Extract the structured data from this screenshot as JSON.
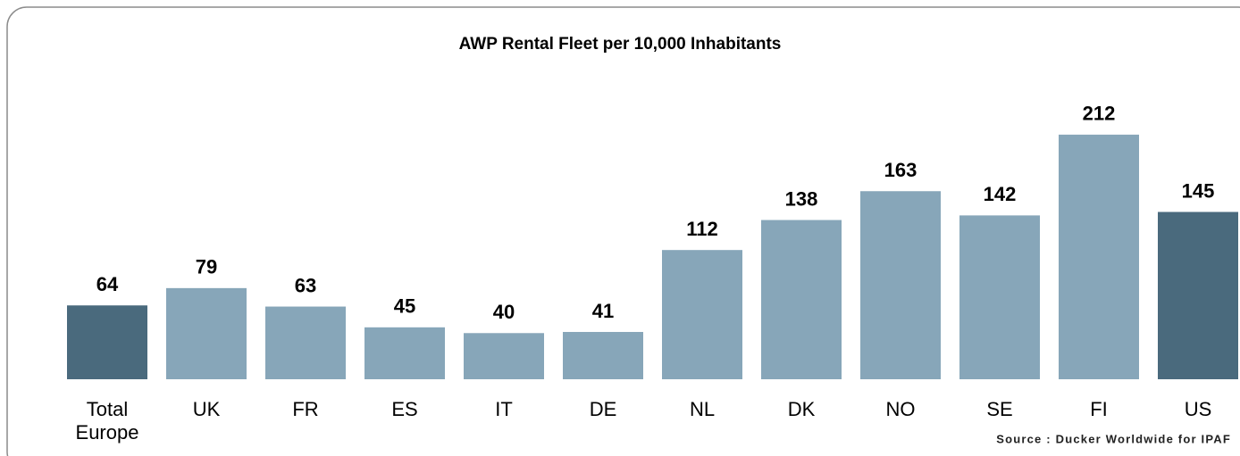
{
  "chart_data": {
    "type": "bar",
    "title": "AWP Rental Fleet per 10,000 Inhabitants",
    "categories": [
      "Total Europe",
      "UK",
      "FR",
      "ES",
      "IT",
      "DE",
      "NL",
      "DK",
      "NO",
      "SE",
      "FI",
      "US"
    ],
    "values": [
      64,
      79,
      63,
      45,
      40,
      41,
      112,
      138,
      163,
      142,
      212,
      145
    ],
    "colors": [
      "#4a6a7d",
      "#87a6b9",
      "#87a6b9",
      "#87a6b9",
      "#87a6b9",
      "#87a6b9",
      "#87a6b9",
      "#87a6b9",
      "#87a6b9",
      "#87a6b9",
      "#87a6b9",
      "#4a6a7d"
    ],
    "source": "Source : Ducker Worldwide for IPAF"
  }
}
